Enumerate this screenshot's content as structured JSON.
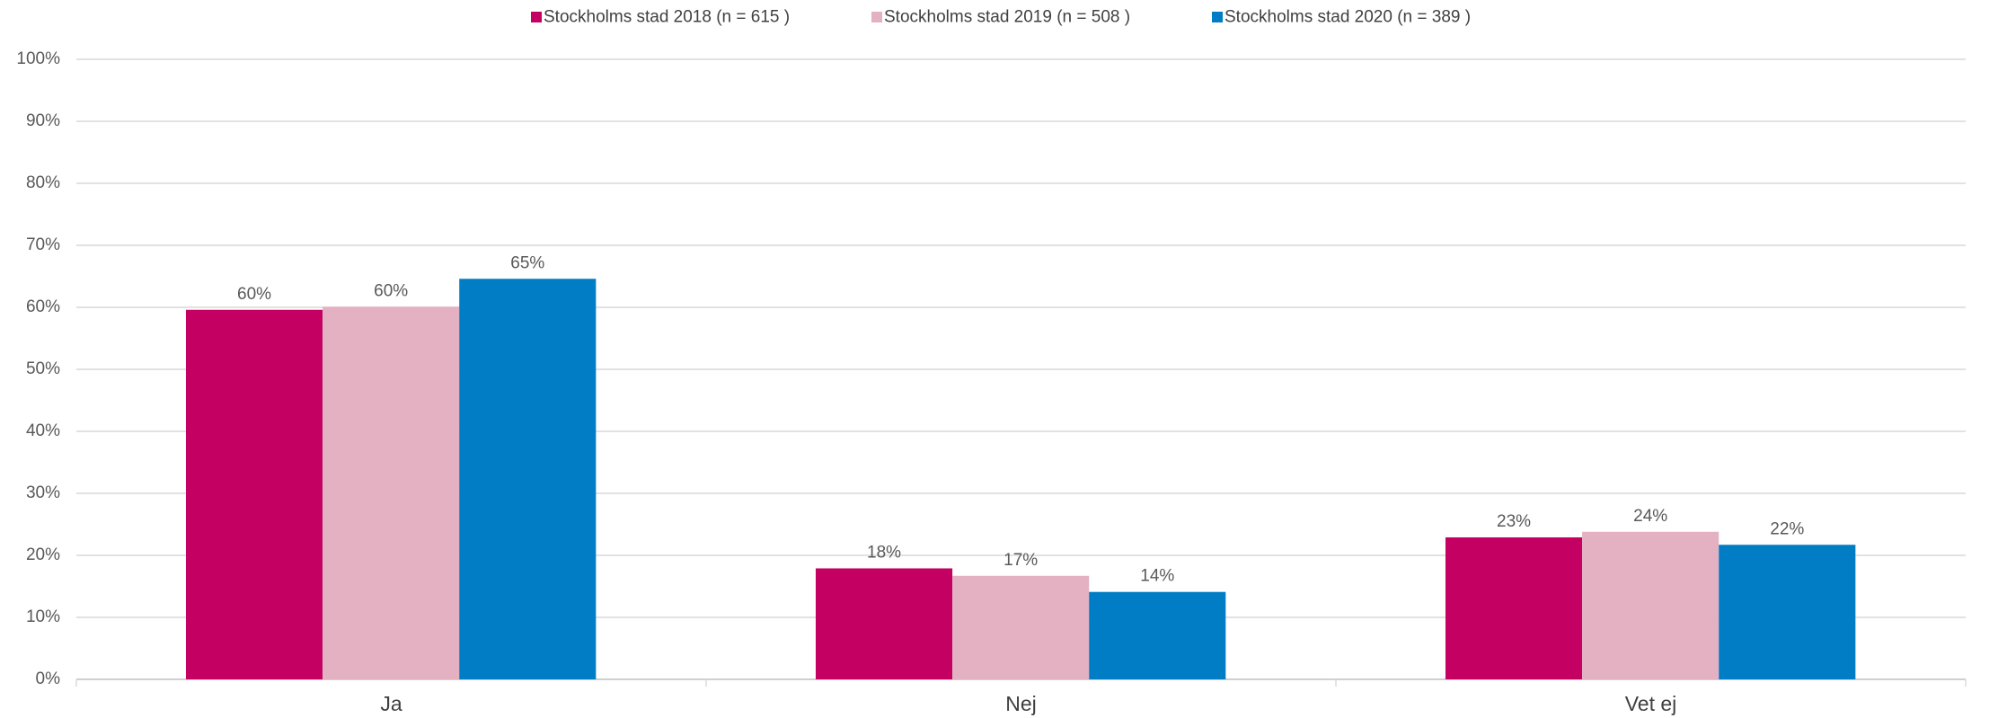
{
  "chart_data": {
    "type": "bar",
    "categories": [
      "Ja",
      "Nej",
      "Vet ej"
    ],
    "series": [
      {
        "name": "Stockholms stad 2018 (n = 615 )",
        "color": "#c40062",
        "values": [
          59.6,
          17.9,
          22.9
        ],
        "value_labels": [
          "60%",
          "18%",
          "23%"
        ]
      },
      {
        "name": "Stockholms stad 2019 (n = 508 )",
        "color": "#e3b1c2",
        "values": [
          60.1,
          16.7,
          23.8
        ],
        "value_labels": [
          "60%",
          "17%",
          "24%"
        ]
      },
      {
        "name": "Stockholms stad 2020 (n = 389 )",
        "color": "#007dc5",
        "values": [
          64.6,
          14.1,
          21.7
        ],
        "value_labels": [
          "65%",
          "14%",
          "22%"
        ]
      }
    ],
    "ylim": [
      0,
      100
    ],
    "yticks": [
      {
        "value": 0,
        "label": "0%"
      },
      {
        "value": 10,
        "label": "10%"
      },
      {
        "value": 20,
        "label": "20%"
      },
      {
        "value": 30,
        "label": "30%"
      },
      {
        "value": 40,
        "label": "40%"
      },
      {
        "value": 50,
        "label": "50%"
      },
      {
        "value": 60,
        "label": "60%"
      },
      {
        "value": 70,
        "label": "70%"
      },
      {
        "value": 80,
        "label": "80%"
      },
      {
        "value": 90,
        "label": "90%"
      },
      {
        "value": 100,
        "label": "100%"
      }
    ],
    "grid": true,
    "legend": "top"
  }
}
